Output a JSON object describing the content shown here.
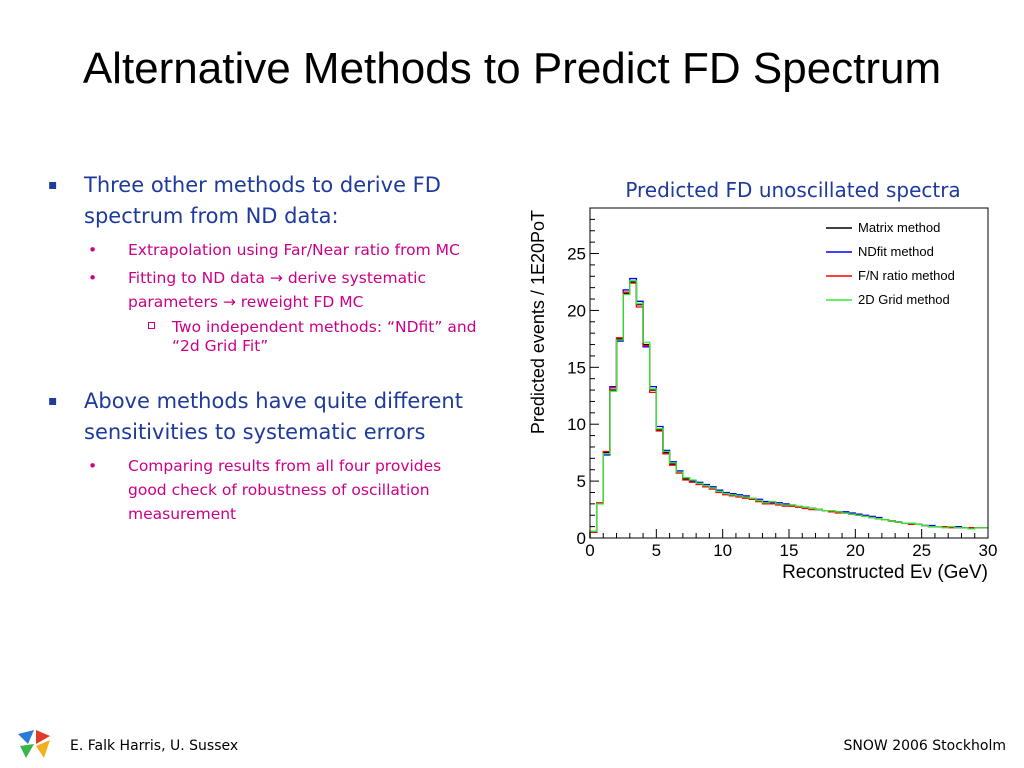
{
  "title": "Alternative Methods to Predict FD Spectrum",
  "bullets": {
    "b1": "Three other methods to derive FD spectrum from ND data:",
    "b1_1": "Extrapolation using Far/Near ratio from MC",
    "b1_2": "Fitting to ND data → derive systematic parameters → reweight FD MC",
    "b1_2_1": "Two independent methods: “NDfit” and “2d Grid Fit”",
    "b2": "Above methods have quite different sensitivities to systematic errors",
    "b2_1": "Comparing results from all four provides good check of robustness of oscillation measurement"
  },
  "chart_caption": "Predicted FD unoscillated spectra",
  "chart_data": {
    "type": "line",
    "xlabel": "Reconstructed Eν (GeV)",
    "ylabel": "Predicted events / 1E20PoT",
    "xlim": [
      0,
      30
    ],
    "ylim": [
      0,
      29
    ],
    "xticks": [
      0,
      5,
      10,
      15,
      20,
      25,
      30
    ],
    "yticks": [
      0,
      5,
      10,
      15,
      20,
      25
    ],
    "legend_position": "top-right",
    "bin_edges": [
      0,
      0.5,
      1,
      1.5,
      2,
      2.5,
      3,
      3.5,
      4,
      4.5,
      5,
      5.5,
      6,
      6.5,
      7,
      7.5,
      8,
      8.5,
      9,
      9.5,
      10,
      10.5,
      11,
      11.5,
      12,
      12.5,
      13,
      13.5,
      14,
      14.5,
      15,
      15.5,
      16,
      16.5,
      17,
      17.5,
      18,
      18.5,
      19,
      19.5,
      20,
      20.5,
      21,
      21.5,
      22,
      22.5,
      23,
      23.5,
      24,
      24.5,
      25,
      25.5,
      26,
      26.5,
      27,
      27.5,
      28,
      28.5,
      29,
      29.5,
      30
    ],
    "series": [
      {
        "name": "Matrix method",
        "color": "#000000",
        "values": [
          0.5,
          3.0,
          7.5,
          13.0,
          17.5,
          21.5,
          22.5,
          20.5,
          17.0,
          13.0,
          9.5,
          7.5,
          6.5,
          5.8,
          5.2,
          5.0,
          4.8,
          4.6,
          4.4,
          4.1,
          3.9,
          3.8,
          3.7,
          3.6,
          3.5,
          3.3,
          3.1,
          3.0,
          3.0,
          2.9,
          2.8,
          2.8,
          2.7,
          2.6,
          2.5,
          2.4,
          2.3,
          2.3,
          2.2,
          2.1,
          2.0,
          1.9,
          1.8,
          1.7,
          1.6,
          1.5,
          1.4,
          1.3,
          1.3,
          1.2,
          1.1,
          1.0,
          1.0,
          1.0,
          1.0,
          0.9,
          0.9,
          0.9,
          0.9,
          0.9
        ]
      },
      {
        "name": "NDfit method",
        "color": "#0000ff",
        "values": [
          0.5,
          3.0,
          7.3,
          13.3,
          17.3,
          21.8,
          22.8,
          20.8,
          16.8,
          13.3,
          9.8,
          7.7,
          6.7,
          5.9,
          5.3,
          5.0,
          4.9,
          4.7,
          4.5,
          4.2,
          4.0,
          3.9,
          3.8,
          3.7,
          3.5,
          3.4,
          3.2,
          3.1,
          3.1,
          3.0,
          2.9,
          2.8,
          2.7,
          2.6,
          2.5,
          2.4,
          2.4,
          2.3,
          2.3,
          2.2,
          2.1,
          2.0,
          1.9,
          1.8,
          1.6,
          1.5,
          1.4,
          1.3,
          1.3,
          1.2,
          1.1,
          1.1,
          1.0,
          1.0,
          1.0,
          1.0,
          0.9,
          0.9,
          0.9,
          0.9
        ]
      },
      {
        "name": "F/N ratio method",
        "color": "#ff0000",
        "values": [
          0.5,
          3.1,
          7.6,
          13.2,
          17.6,
          21.6,
          22.4,
          20.3,
          16.9,
          12.8,
          9.4,
          7.4,
          6.4,
          5.7,
          5.1,
          4.9,
          4.7,
          4.5,
          4.3,
          4.0,
          3.8,
          3.7,
          3.6,
          3.5,
          3.4,
          3.2,
          3.0,
          3.0,
          2.9,
          2.8,
          2.8,
          2.7,
          2.6,
          2.5,
          2.5,
          2.4,
          2.3,
          2.2,
          2.2,
          2.1,
          2.0,
          1.9,
          1.8,
          1.7,
          1.6,
          1.5,
          1.4,
          1.3,
          1.2,
          1.2,
          1.1,
          1.0,
          1.0,
          1.0,
          0.9,
          0.9,
          0.9,
          0.9,
          0.9,
          0.9
        ]
      },
      {
        "name": "2D Grid method",
        "color": "#33ee33",
        "values": [
          0.6,
          3.0,
          7.4,
          12.9,
          17.4,
          21.4,
          22.6,
          20.6,
          17.2,
          13.1,
          9.6,
          7.6,
          6.6,
          5.8,
          5.3,
          5.1,
          4.8,
          4.6,
          4.4,
          4.1,
          3.9,
          3.8,
          3.7,
          3.6,
          3.5,
          3.3,
          3.1,
          3.2,
          3.0,
          2.9,
          2.9,
          2.8,
          2.7,
          2.6,
          2.5,
          2.4,
          2.4,
          2.3,
          2.2,
          2.1,
          2.0,
          1.9,
          1.8,
          1.7,
          1.6,
          1.5,
          1.4,
          1.3,
          1.3,
          1.2,
          1.1,
          1.0,
          1.0,
          0.9,
          1.0,
          0.9,
          0.9,
          0.8,
          0.9,
          0.9
        ]
      }
    ]
  },
  "footer": {
    "left": "E. Falk Harris, U. Sussex",
    "right": "SNOW 2006 Stockholm"
  },
  "logo": {
    "icon": "conference-logo-icon",
    "colors": [
      "#2b7bd6",
      "#e03a2a",
      "#39b54a",
      "#f2b01e"
    ]
  }
}
